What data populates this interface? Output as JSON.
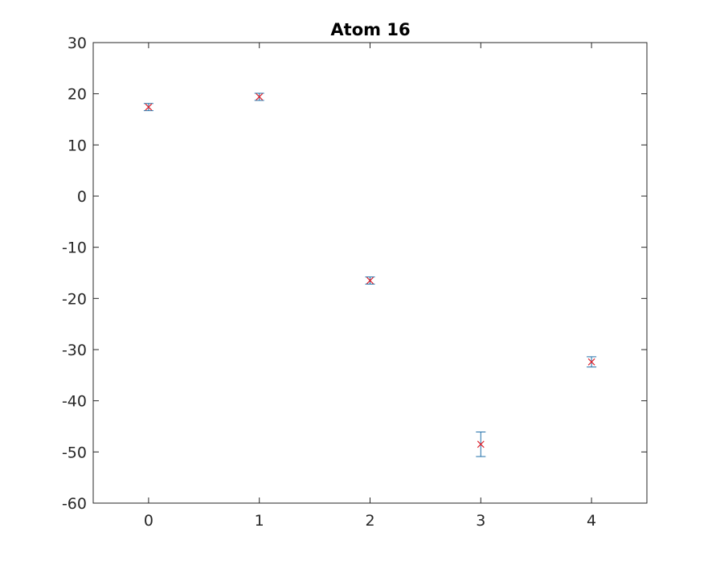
{
  "chart_data": {
    "type": "scatter",
    "title": "Atom 16",
    "xlabel": "",
    "ylabel": "",
    "xlim": [
      -0.5,
      4.5
    ],
    "ylim": [
      -60,
      30
    ],
    "xticks": [
      0,
      1,
      2,
      3,
      4
    ],
    "yticks": [
      30,
      20,
      10,
      0,
      -10,
      -20,
      -30,
      -40,
      -50,
      -60
    ],
    "grid": false,
    "series": [
      {
        "x": [
          0,
          1,
          2,
          3,
          4
        ],
        "y": [
          17.4,
          19.4,
          -16.5,
          -48.5,
          -32.4
        ],
        "error": [
          0.7,
          0.7,
          0.7,
          2.4,
          1.0
        ],
        "marker_color": "#e0202a",
        "errorbar_color": "#1f6fa8"
      }
    ],
    "axes_color": "#262626"
  }
}
